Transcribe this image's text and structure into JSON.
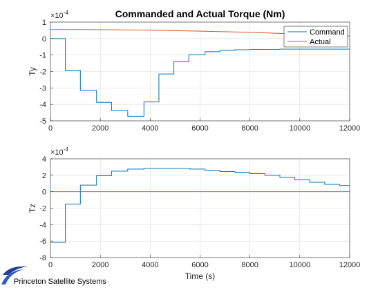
{
  "chart_data": [
    {
      "type": "line",
      "title": "Commanded and Actual Torque (Nm)",
      "xlabel": "",
      "ylabel": "Ty",
      "y_exponent": "-4",
      "xlim": [
        0,
        12000
      ],
      "ylim": [
        -5,
        1
      ],
      "xticks": [
        0,
        2000,
        4000,
        6000,
        8000,
        10000,
        12000
      ],
      "xtick_labels": [
        "0",
        "2000",
        "4000",
        "6000",
        "8000",
        "10000",
        "12000"
      ],
      "yticks": [
        1,
        0,
        -1,
        -2,
        -3,
        -4,
        -5
      ],
      "ytick_labels": [
        "1",
        "0",
        "-1",
        "-2",
        "-3",
        "-4",
        "-5"
      ],
      "grid": true,
      "legend_position": "top-right",
      "series": [
        {
          "name": "Command",
          "color": "#0072BD",
          "x": [
            0,
            600,
            600,
            1200,
            1200,
            1850,
            1850,
            2450,
            2450,
            3100,
            3100,
            3750,
            3750,
            4350,
            4350,
            4950,
            4950,
            5550,
            5550,
            6200,
            6200,
            6800,
            6800,
            7400,
            7400,
            8000,
            8000,
            9200,
            9200,
            12000
          ],
          "y": [
            0,
            0,
            -1.95,
            -1.95,
            -3.15,
            -3.15,
            -3.88,
            -3.88,
            -4.38,
            -4.38,
            -4.72,
            -4.72,
            -3.85,
            -3.85,
            -2.15,
            -2.15,
            -1.4,
            -1.4,
            -0.98,
            -0.98,
            -0.8,
            -0.8,
            -0.72,
            -0.72,
            -0.68,
            -0.68,
            -0.66,
            -0.66,
            -0.64,
            -0.64
          ]
        },
        {
          "name": "Actual",
          "color": "#D95319",
          "x": [
            0,
            2000,
            4000,
            6000,
            8000,
            10000,
            12000
          ],
          "y": [
            0.55,
            0.54,
            0.51,
            0.45,
            0.38,
            0.27,
            0.15
          ]
        }
      ]
    },
    {
      "type": "line",
      "title": "",
      "xlabel": "Time (s)",
      "ylabel": "Tz",
      "y_exponent": "-4",
      "xlim": [
        0,
        12000
      ],
      "ylim": [
        -8,
        4
      ],
      "xticks": [
        0,
        2000,
        4000,
        6000,
        8000,
        10000,
        12000
      ],
      "xtick_labels": [
        "0",
        "2000",
        "4000",
        "6000",
        "8000",
        "10000",
        "12000"
      ],
      "yticks": [
        4,
        2,
        0,
        -2,
        -4,
        -6,
        -8
      ],
      "ytick_labels": [
        "4",
        "2",
        "0",
        "-2",
        "-4",
        "-6",
        "-8"
      ],
      "grid": true,
      "series": [
        {
          "name": "Command",
          "color": "#0072BD",
          "x": [
            0,
            600,
            600,
            1200,
            1200,
            1850,
            1850,
            2450,
            2450,
            3100,
            3100,
            3750,
            3750,
            5600,
            5600,
            6200,
            6200,
            6800,
            6800,
            7400,
            7400,
            8000,
            8000,
            8600,
            8600,
            9200,
            9200,
            9800,
            9800,
            10400,
            10400,
            11000,
            11000,
            11600,
            11600,
            12000
          ],
          "y": [
            -6.15,
            -6.15,
            -1.5,
            -1.5,
            0.8,
            0.8,
            1.95,
            1.95,
            2.5,
            2.5,
            2.75,
            2.75,
            2.85,
            2.85,
            2.75,
            2.75,
            2.6,
            2.6,
            2.45,
            2.45,
            2.35,
            2.35,
            2.2,
            2.2,
            2.0,
            2.0,
            1.75,
            1.75,
            1.45,
            1.45,
            1.15,
            1.15,
            0.9,
            0.9,
            0.75,
            0.75
          ]
        },
        {
          "name": "Actual",
          "color": "#D95319",
          "x": [
            0,
            12000
          ],
          "y": [
            0,
            0
          ]
        }
      ]
    }
  ],
  "watermark": "Princeton Satellite Systems"
}
